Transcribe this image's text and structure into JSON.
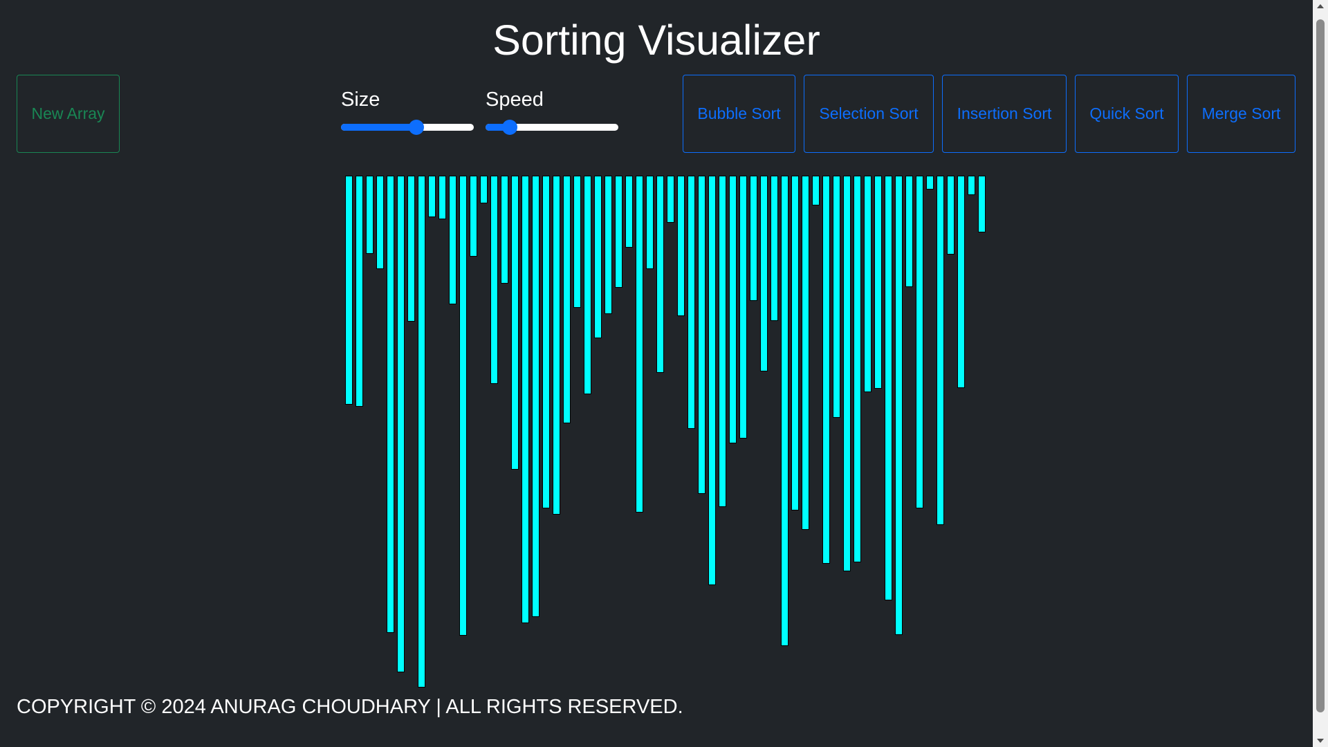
{
  "header": {
    "title": "Sorting Visualizer"
  },
  "controls": {
    "new_array_label": "New Array",
    "size": {
      "label": "Size",
      "value_fraction": 0.57
    },
    "speed": {
      "label": "Speed",
      "value_fraction": 0.18
    },
    "algorithms": [
      "Bubble Sort",
      "Selection Sort",
      "Insertion Sort",
      "Quick Sort",
      "Merge Sort"
    ]
  },
  "array": {
    "bar_color": "#00ffff",
    "values": [
      330,
      333,
      113,
      134,
      658,
      715,
      210,
      737,
      60,
      63,
      185,
      662,
      117,
      40,
      300,
      155,
      423,
      644,
      635,
      479,
      488,
      357,
      190,
      315,
      234,
      199,
      161,
      104,
      485,
      134,
      284,
      68,
      202,
      365,
      458,
      590,
      477,
      385,
      378,
      180,
      282,
      209,
      677,
      482,
      510,
      43,
      559,
      349,
      570,
      557,
      312,
      307,
      612,
      661,
      160,
      479,
      20,
      503,
      114,
      306,
      28,
      82
    ],
    "max_value": 737
  },
  "footer": {
    "text": "COPYRIGHT © 2024 ANURAG CHOUDHARY | ALL RIGHTS RESERVED."
  },
  "theme": {
    "background": "#212529",
    "primary": "#0d6efd",
    "success": "#198754"
  }
}
